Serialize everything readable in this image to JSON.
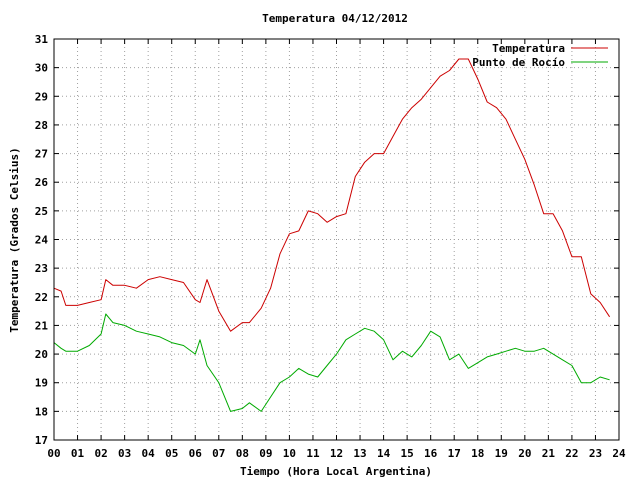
{
  "chart_data": {
    "type": "line",
    "title": "Temperatura 04/12/2012",
    "xlabel": "Tiempo (Hora Local Argentina)",
    "ylabel": "Temperatura (Grados Celsius)",
    "xlim": [
      0,
      24
    ],
    "ylim": [
      17,
      31
    ],
    "x_ticks": [
      "00",
      "01",
      "02",
      "03",
      "04",
      "05",
      "06",
      "07",
      "08",
      "09",
      "10",
      "11",
      "12",
      "13",
      "14",
      "15",
      "16",
      "17",
      "18",
      "19",
      "20",
      "21",
      "22",
      "23",
      "24"
    ],
    "y_ticks": [
      17,
      18,
      19,
      20,
      21,
      22,
      23,
      24,
      25,
      26,
      27,
      28,
      29,
      30,
      31
    ],
    "grid": true,
    "legend_position": "top-right",
    "series": [
      {
        "name": "Temperatura",
        "color": "#cc0000",
        "x": [
          0.0,
          0.3,
          0.5,
          1.0,
          1.5,
          2.0,
          2.2,
          2.5,
          3.0,
          3.5,
          4.0,
          4.5,
          5.0,
          5.5,
          6.0,
          6.2,
          6.5,
          7.0,
          7.5,
          8.0,
          8.3,
          8.8,
          9.2,
          9.6,
          10.0,
          10.4,
          10.8,
          11.2,
          11.6,
          12.0,
          12.4,
          12.8,
          13.2,
          13.6,
          14.0,
          14.4,
          14.8,
          15.2,
          15.6,
          16.0,
          16.4,
          16.8,
          17.2,
          17.6,
          18.0,
          18.4,
          18.8,
          19.2,
          19.6,
          20.0,
          20.4,
          20.8,
          21.2,
          21.6,
          22.0,
          22.4,
          22.8,
          23.2,
          23.6
        ],
        "values": [
          22.3,
          22.2,
          21.7,
          21.7,
          21.8,
          21.9,
          22.6,
          22.4,
          22.4,
          22.3,
          22.6,
          22.7,
          22.6,
          22.5,
          21.9,
          21.8,
          22.6,
          21.5,
          20.8,
          21.1,
          21.1,
          21.6,
          22.3,
          23.5,
          24.2,
          24.3,
          25.0,
          24.9,
          24.6,
          24.8,
          24.9,
          26.2,
          26.7,
          27.0,
          27.0,
          27.6,
          28.2,
          28.6,
          28.9,
          29.3,
          29.7,
          29.9,
          30.3,
          30.3,
          29.6,
          28.8,
          28.6,
          28.2,
          27.5,
          26.8,
          25.9,
          24.9,
          24.9,
          24.3,
          23.4,
          23.4,
          22.1,
          21.8,
          21.3
        ]
      },
      {
        "name": "Punto de Rocío",
        "color": "#00aa00",
        "x": [
          0.0,
          0.3,
          0.5,
          1.0,
          1.5,
          2.0,
          2.2,
          2.5,
          3.0,
          3.5,
          4.0,
          4.5,
          5.0,
          5.5,
          6.0,
          6.2,
          6.5,
          7.0,
          7.5,
          8.0,
          8.3,
          8.8,
          9.2,
          9.6,
          10.0,
          10.4,
          10.8,
          11.2,
          11.6,
          12.0,
          12.4,
          12.8,
          13.2,
          13.6,
          14.0,
          14.4,
          14.8,
          15.2,
          15.6,
          16.0,
          16.4,
          16.8,
          17.2,
          17.6,
          18.0,
          18.4,
          18.8,
          19.2,
          19.6,
          20.0,
          20.4,
          20.8,
          21.2,
          21.6,
          22.0,
          22.4,
          22.8,
          23.2,
          23.6
        ],
        "values": [
          20.4,
          20.2,
          20.1,
          20.1,
          20.3,
          20.7,
          21.4,
          21.1,
          21.0,
          20.8,
          20.7,
          20.6,
          20.4,
          20.3,
          20.0,
          20.5,
          19.6,
          19.0,
          18.0,
          18.1,
          18.3,
          18.0,
          18.5,
          19.0,
          19.2,
          19.5,
          19.3,
          19.2,
          19.6,
          20.0,
          20.5,
          20.7,
          20.9,
          20.8,
          20.5,
          19.8,
          20.1,
          19.9,
          20.3,
          20.8,
          20.6,
          19.8,
          20.0,
          19.5,
          19.7,
          19.9,
          20.0,
          20.1,
          20.2,
          20.1,
          20.1,
          20.2,
          20.0,
          19.8,
          19.6,
          19.0,
          19.0,
          19.2,
          19.1
        ]
      }
    ]
  }
}
